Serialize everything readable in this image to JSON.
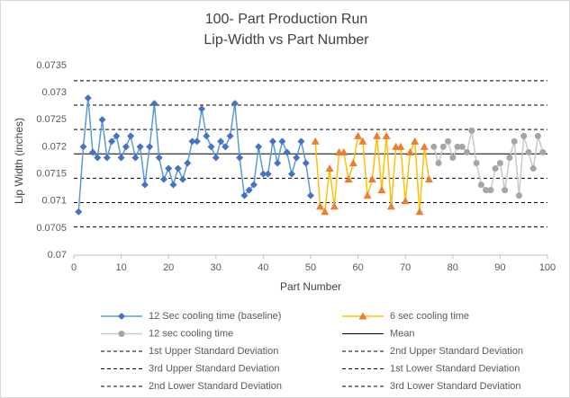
{
  "chart_data": {
    "type": "line",
    "title": [
      "100- Part Production Run",
      "Lip-Width vs Part Number"
    ],
    "x_label": "Part Number",
    "y_label": "Lip  Width (inches)",
    "xlim": [
      0,
      100
    ],
    "xticks": [
      0,
      10,
      20,
      30,
      40,
      50,
      60,
      70,
      80,
      90,
      100
    ],
    "ylim": [
      0.07,
      0.0735
    ],
    "yticks": [
      0.07,
      0.0705,
      0.071,
      0.0715,
      0.072,
      0.0725,
      0.073,
      0.0735
    ],
    "grid": false,
    "legend": "bottom",
    "series": [
      {
        "name": "12 Sec cooling time (baseline)",
        "color": "#5b9bd5",
        "marker_color": "#4472c4",
        "marker": "diamond",
        "x": [
          1,
          2,
          3,
          4,
          5,
          6,
          7,
          8,
          9,
          10,
          11,
          12,
          13,
          14,
          15,
          16,
          17,
          18,
          19,
          20,
          21,
          22,
          23,
          24,
          25,
          26,
          27,
          28,
          29,
          30,
          31,
          32,
          33,
          34,
          35,
          36,
          37,
          38,
          39,
          40,
          41,
          42,
          43,
          44,
          45,
          46,
          47,
          48,
          49,
          50
        ],
        "values": [
          0.0708,
          0.072,
          0.0729,
          0.0719,
          0.0718,
          0.0725,
          0.0718,
          0.0721,
          0.0722,
          0.0718,
          0.072,
          0.0722,
          0.0718,
          0.072,
          0.0713,
          0.072,
          0.0728,
          0.0718,
          0.0714,
          0.0716,
          0.0713,
          0.0716,
          0.0714,
          0.0717,
          0.0721,
          0.0721,
          0.0727,
          0.0722,
          0.072,
          0.0718,
          0.0721,
          0.072,
          0.0722,
          0.0728,
          0.0718,
          0.0711,
          0.0712,
          0.0713,
          0.072,
          0.0715,
          0.0715,
          0.0721,
          0.0717,
          0.0721,
          0.0719,
          0.0715,
          0.0718,
          0.0721,
          0.0717,
          0.0711
        ]
      },
      {
        "name": "6 sec cooling time",
        "color": "#ffc000",
        "marker_color": "#ed7d31",
        "marker": "triangle",
        "x": [
          51,
          52,
          53,
          54,
          55,
          56,
          57,
          58,
          59,
          60,
          61,
          62,
          63,
          64,
          65,
          66,
          67,
          68,
          69,
          70,
          71,
          72,
          73,
          74,
          75
        ],
        "values": [
          0.0721,
          0.0709,
          0.0708,
          0.0716,
          0.0709,
          0.0719,
          0.0719,
          0.0714,
          0.0717,
          0.0722,
          0.0721,
          0.0711,
          0.0714,
          0.0722,
          0.0712,
          0.0722,
          0.0709,
          0.072,
          0.072,
          0.071,
          0.0719,
          0.0721,
          0.0708,
          0.072,
          0.0714
        ]
      },
      {
        "name": "12 sec cooling time",
        "color": "#c9c9c9",
        "marker_color": "#a5a5a5",
        "marker": "circle",
        "x": [
          76,
          77,
          78,
          79,
          80,
          81,
          82,
          83,
          84,
          85,
          86,
          87,
          88,
          89,
          90,
          91,
          92,
          93,
          94,
          95,
          96,
          97,
          98,
          99
        ],
        "values": [
          0.072,
          0.0717,
          0.072,
          0.0721,
          0.0718,
          0.072,
          0.072,
          0.0719,
          0.0723,
          0.0717,
          0.0713,
          0.0712,
          0.0712,
          0.0716,
          0.0717,
          0.0712,
          0.0718,
          0.0721,
          0.0711,
          0.0722,
          0.0719,
          0.0716,
          0.0722,
          0.0719
        ]
      }
    ],
    "reference_lines": [
      {
        "name": "Mean",
        "value": 0.07187,
        "style": "solid"
      },
      {
        "name": "1st Upper Standard Deviation",
        "value": 0.07232,
        "style": "dashed"
      },
      {
        "name": "2nd Upper Standard Deviation",
        "value": 0.07277,
        "style": "dashed"
      },
      {
        "name": "3rd Upper Standard Deviation",
        "value": 0.07322,
        "style": "dashed"
      },
      {
        "name": "1st Lower Standard Deviation",
        "value": 0.07142,
        "style": "dashed"
      },
      {
        "name": "2nd Lower Standard Deviation",
        "value": 0.07097,
        "style": "dashed"
      },
      {
        "name": "3rd Lower Standard Deviation",
        "value": 0.07052,
        "style": "dashed"
      }
    ]
  }
}
